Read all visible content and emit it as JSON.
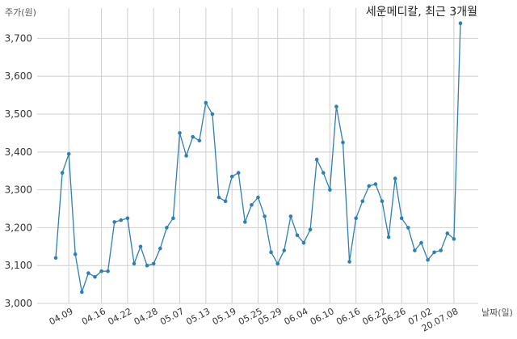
{
  "chart_data": {
    "type": "line",
    "title": "세운메디칼, 최근 3개월",
    "xlabel": "날짜(일)",
    "ylabel": "주가(원)",
    "ylim": [
      3000,
      3780
    ],
    "y_ticks": [
      3000,
      3100,
      3200,
      3300,
      3400,
      3500,
      3600,
      3700
    ],
    "y_tick_labels": [
      "3,000",
      "3,100",
      "3,200",
      "3,300",
      "3,400",
      "3,500",
      "3,600",
      "3,700"
    ],
    "x_tick_labels": [
      "04.09",
      "04.16",
      "04.22",
      "04.28",
      "05.07",
      "05.13",
      "05.19",
      "05.25",
      "05.29",
      "06.04",
      "06.10",
      "06.16",
      "06.22",
      "06.26",
      "07.02",
      "20.07.08"
    ],
    "x_tick_index": [
      2,
      7,
      11,
      15,
      19,
      23,
      27,
      31,
      34,
      38,
      42,
      46,
      50,
      53,
      57,
      61
    ],
    "grid": true,
    "series": [
      {
        "color": "#2e7fb5",
        "values": [
          3120,
          3345,
          3395,
          3130,
          3030,
          3080,
          3070,
          3085,
          3085,
          3215,
          3220,
          3225,
          3105,
          3150,
          3100,
          3105,
          3145,
          3200,
          3225,
          3450,
          3390,
          3440,
          3430,
          3530,
          3500,
          3280,
          3270,
          3335,
          3345,
          3215,
          3260,
          3280,
          3230,
          3135,
          3105,
          3140,
          3230,
          3180,
          3160,
          3195,
          3380,
          3345,
          3300,
          3520,
          3425,
          3110,
          3225,
          3270,
          3310,
          3315,
          3270,
          3175,
          3330,
          3225,
          3200,
          3140,
          3160,
          3115,
          3135,
          3140,
          3185,
          3170,
          3740
        ]
      }
    ]
  }
}
